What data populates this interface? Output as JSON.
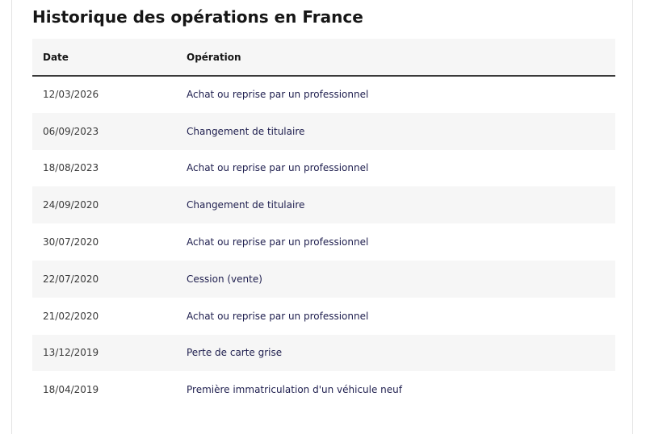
{
  "section": {
    "title": "Historique des opérations en France"
  },
  "table": {
    "headers": {
      "date": "Date",
      "operation": "Opération"
    },
    "rows": [
      {
        "date": "12/03/2026",
        "operation": "Achat ou reprise par un professionnel"
      },
      {
        "date": "06/09/2023",
        "operation": "Changement de titulaire"
      },
      {
        "date": "18/08/2023",
        "operation": "Achat ou reprise par un professionnel"
      },
      {
        "date": "24/09/2020",
        "operation": "Changement de titulaire"
      },
      {
        "date": "30/07/2020",
        "operation": "Achat ou reprise par un professionnel"
      },
      {
        "date": "22/07/2020",
        "operation": "Cession (vente)"
      },
      {
        "date": "21/02/2020",
        "operation": "Achat ou reprise par un professionnel"
      },
      {
        "date": "13/12/2019",
        "operation": "Perte de carte grise"
      },
      {
        "date": "18/04/2019",
        "operation": "Première immatriculation d'un véhicule neuf"
      }
    ]
  },
  "colors": {
    "header_background": "#f6f6f6",
    "header_rule": "#3a3a3a",
    "operation_text": "#1e1e4e"
  }
}
